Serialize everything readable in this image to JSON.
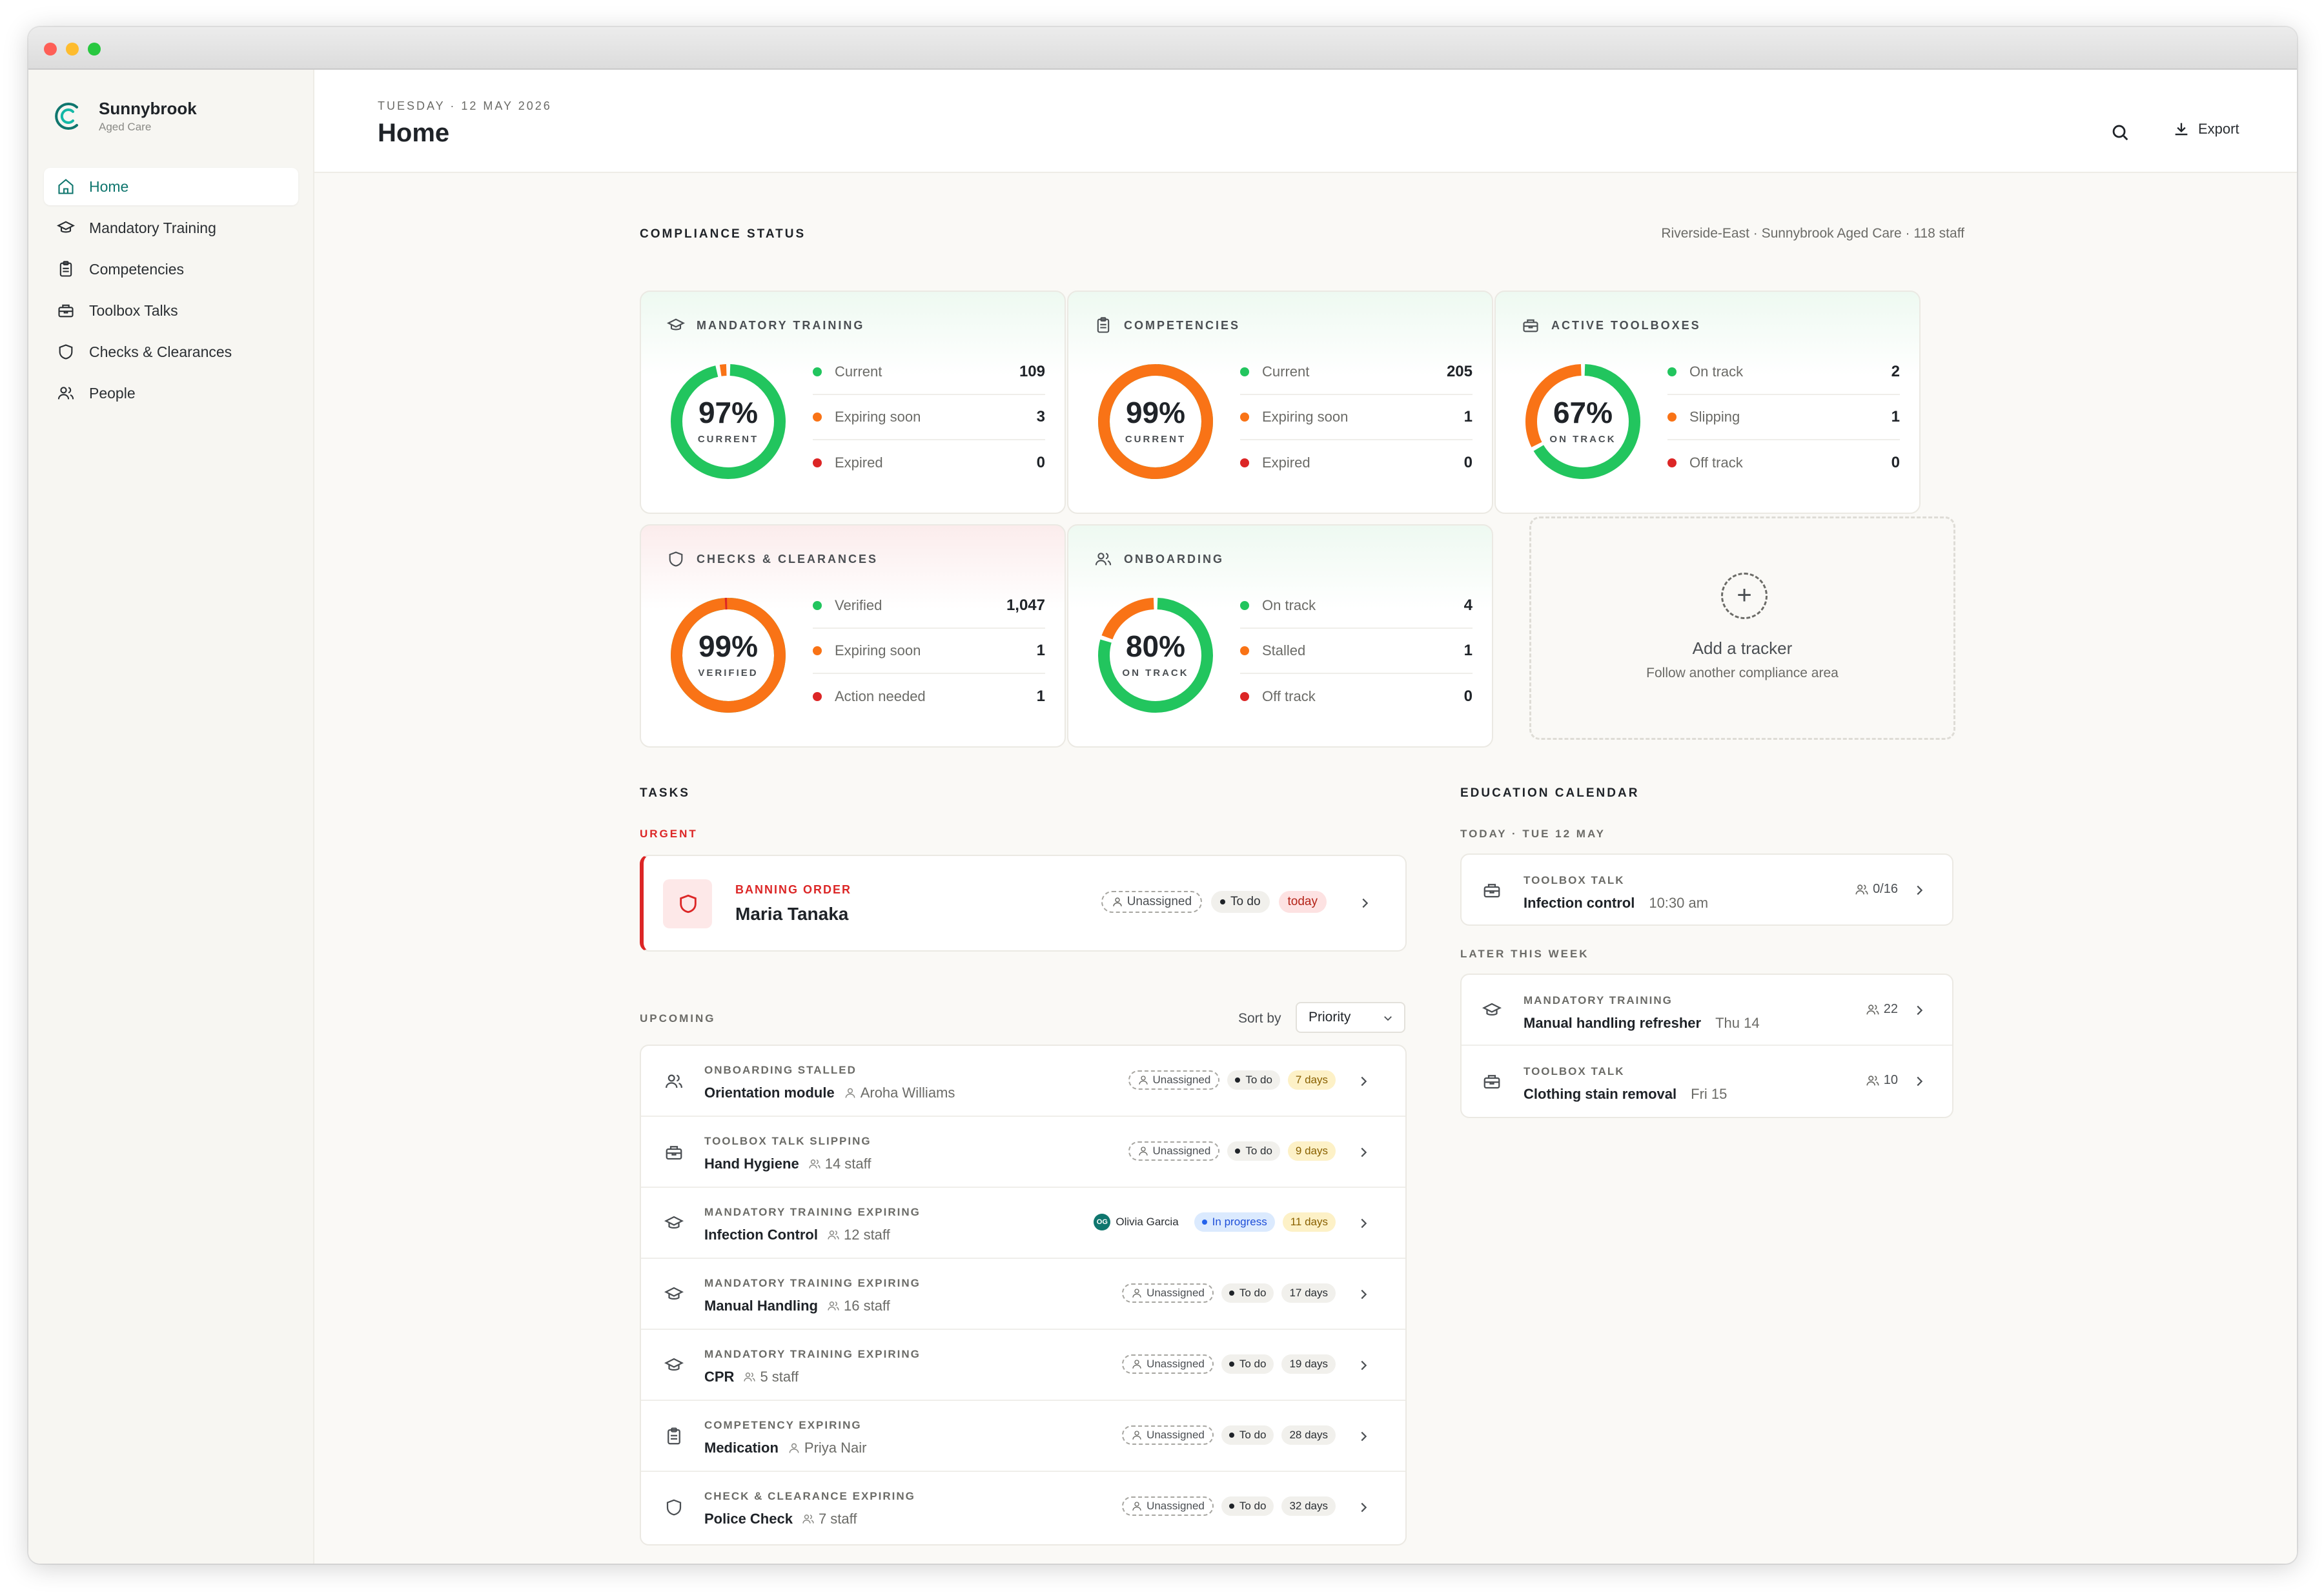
{
  "brand": {
    "name": "Sunnybrook",
    "sub": "Aged Care"
  },
  "nav": [
    {
      "label": "Home",
      "icon": "home-icon",
      "active": true
    },
    {
      "label": "Mandatory Training",
      "icon": "graduation-cap-icon"
    },
    {
      "label": "Competencies",
      "icon": "clipboard-icon"
    },
    {
      "label": "Toolbox Talks",
      "icon": "toolbox-icon"
    },
    {
      "label": "Checks & Clearances",
      "icon": "shield-icon"
    },
    {
      "label": "People",
      "icon": "people-icon"
    }
  ],
  "header": {
    "date": "TUESDAY · 12 MAY 2026",
    "title": "Home",
    "export_label": "Export"
  },
  "compliance": {
    "heading": "COMPLIANCE STATUS",
    "context": "Riverside-East · Sunnybrook Aged Care · 118 staff",
    "cards": [
      {
        "title": "MANDATORY TRAINING",
        "pct": "97%",
        "pct_label": "CURRENT",
        "fraction": 0.97,
        "rows": [
          {
            "label": "Current",
            "value": "109"
          },
          {
            "label": "Expiring soon",
            "value": "3"
          },
          {
            "label": "Expired",
            "value": "0"
          }
        ]
      },
      {
        "title": "COMPETENCIES",
        "pct": "99%",
        "pct_label": "CURRENT",
        "fraction": 0.99,
        "rows": [
          {
            "label": "Current",
            "value": "205"
          },
          {
            "label": "Expiring soon",
            "value": "1"
          },
          {
            "label": "Expired",
            "value": "0"
          }
        ]
      },
      {
        "title": "ACTIVE TOOLBOXES",
        "pct": "67%",
        "pct_label": "ON TRACK",
        "fraction": 0.67,
        "rows": [
          {
            "label": "On track",
            "value": "2"
          },
          {
            "label": "Slipping",
            "value": "1"
          },
          {
            "label": "Off track",
            "value": "0"
          }
        ]
      },
      {
        "title": "CHECKS & CLEARANCES",
        "pct": "99%",
        "pct_label": "VERIFIED",
        "fraction": 0.99,
        "rows": [
          {
            "label": "Verified",
            "value": "1,047"
          },
          {
            "label": "Expiring soon",
            "value": "1"
          },
          {
            "label": "Action needed",
            "value": "1"
          }
        ]
      },
      {
        "title": "ONBOARDING",
        "pct": "80%",
        "pct_label": "ON TRACK",
        "fraction": 0.8,
        "rows": [
          {
            "label": "On track",
            "value": "4"
          },
          {
            "label": "Stalled",
            "value": "1"
          },
          {
            "label": "Off track",
            "value": "0"
          }
        ]
      }
    ],
    "add": {
      "title": "Add a tracker",
      "subtitle": "Follow another compliance area"
    }
  },
  "tasks": {
    "heading": "TASKS",
    "urgent_label": "URGENT",
    "urgent": {
      "kind": "BANNING ORDER",
      "name": "Maria Tanaka",
      "assignee": "Unassigned",
      "status": "To do",
      "due": "today"
    },
    "upcoming_label": "UPCOMING",
    "sort_label": "Sort by",
    "sort_value": "Priority",
    "upcoming": [
      {
        "kind": "ONBOARDING STALLED",
        "name": "Orientation module",
        "meta": "Aroha Williams",
        "assignee": "Unassigned",
        "status": "To do",
        "due": "7 days"
      },
      {
        "kind": "TOOLBOX TALK SLIPPING",
        "name": "Hand Hygiene",
        "meta": "14 staff",
        "assignee": "Unassigned",
        "status": "To do",
        "due": "9 days"
      },
      {
        "kind": "MANDATORY TRAINING EXPIRING",
        "name": "Infection Control",
        "meta": "12 staff",
        "assignee": "Olivia Garcia",
        "assignee_initials": "OG",
        "status": "In progress",
        "due": "11 days"
      },
      {
        "kind": "MANDATORY TRAINING EXPIRING",
        "name": "Manual Handling",
        "meta": "16 staff",
        "assignee": "Unassigned",
        "status": "To do",
        "due": "17 days"
      },
      {
        "kind": "MANDATORY TRAINING EXPIRING",
        "name": "CPR",
        "meta": "5 staff",
        "assignee": "Unassigned",
        "status": "To do",
        "due": "19 days"
      },
      {
        "kind": "COMPETENCY EXPIRING",
        "name": "Medication",
        "meta": "Priya Nair",
        "assignee": "Unassigned",
        "status": "To do",
        "due": "28 days"
      },
      {
        "kind": "CHECK & CLEARANCE EXPIRING",
        "name": "Police Check",
        "meta": "7 staff",
        "assignee": "Unassigned",
        "status": "To do",
        "due": "32 days"
      }
    ]
  },
  "calendar": {
    "heading": "EDUCATION CALENDAR",
    "today_label": "TODAY · TUE 12 MAY",
    "today": [
      {
        "kind": "TOOLBOX TALK",
        "name": "Infection control",
        "when": "10:30 am",
        "count": "0/16"
      }
    ],
    "later_label": "LATER THIS WEEK",
    "later": [
      {
        "kind": "MANDATORY TRAINING",
        "name": "Manual handling refresher",
        "when": "Thu 14",
        "count": "22"
      },
      {
        "kind": "TOOLBOX TALK",
        "name": "Clothing stain removal",
        "when": "Fri 15",
        "count": "10"
      }
    ]
  },
  "colors": {
    "accent": "#0f766e",
    "green": "#22c55e",
    "orange": "#f97316",
    "red": "#dc2626"
  }
}
